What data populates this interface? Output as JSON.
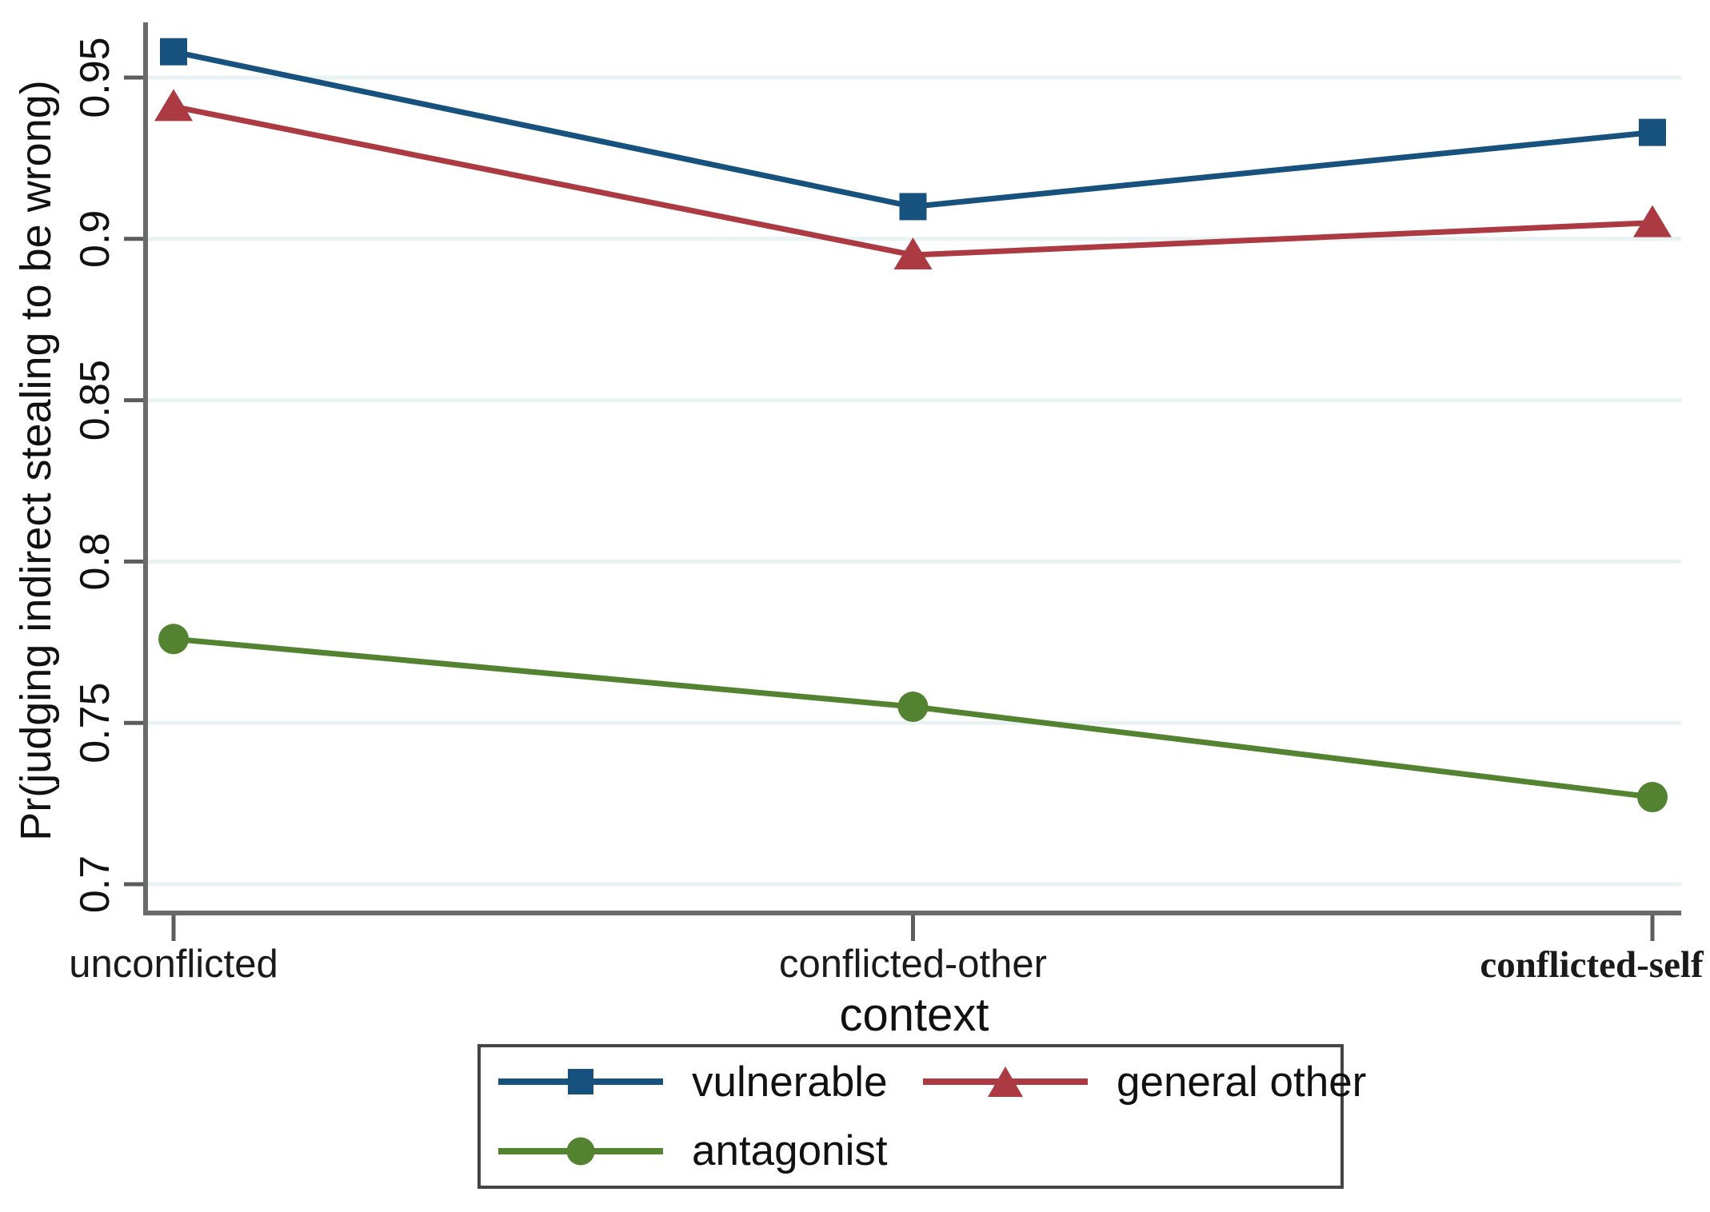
{
  "chart_data": {
    "type": "line",
    "title": "",
    "xlabel": "context",
    "ylabel": "Pr(judging indirect stealing to be wrong)",
    "categories": [
      "unconflicted",
      "conflicted-other",
      "conflicted-self"
    ],
    "emphasized_category_index": 2,
    "yticks": [
      0.7,
      0.75,
      0.8,
      0.85,
      0.9,
      0.95
    ],
    "ytick_labels": [
      "0.7",
      "0.75",
      "0.8",
      "0.85",
      "0.9",
      "0.95"
    ],
    "ylim": [
      0.688,
      0.967
    ],
    "grid": true,
    "legend_position": "bottom",
    "series": [
      {
        "name": "vulnerable",
        "marker": "square",
        "color": "#17517e",
        "values": [
          0.958,
          0.91,
          0.933
        ]
      },
      {
        "name": "general other",
        "marker": "triangle",
        "color": "#ac3a42",
        "values": [
          0.941,
          0.895,
          0.905
        ]
      },
      {
        "name": "antagonist",
        "marker": "circle",
        "color": "#538231",
        "values": [
          0.776,
          0.755,
          0.727
        ]
      }
    ],
    "palette": {
      "grid": "#e9f2f3",
      "axis": "#6a6a6a",
      "tick": "#5c5c5c",
      "text": "#111111",
      "category_text": "#1a1a1a"
    }
  }
}
